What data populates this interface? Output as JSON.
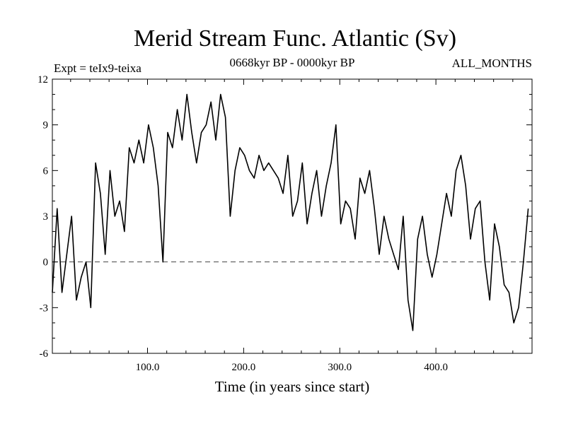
{
  "chart_data": {
    "type": "line",
    "title": "Merid Stream Func. Atlantic (Sv)",
    "experiment_label": "Expt = teIx9-teixa",
    "period_label": "0668kyr BP - 0000kyr BP",
    "season_label": "ALL_MONTHS",
    "xlabel": "Time (in years since start)",
    "ylabel": "",
    "xlim": [
      1,
      500
    ],
    "ylim": [
      -6,
      12
    ],
    "x_ticks": [
      100,
      200,
      300,
      400
    ],
    "x_tick_labels": [
      "100.0",
      "200.0",
      "300.0",
      "400.0"
    ],
    "y_ticks": [
      -6,
      -3,
      0,
      3,
      6,
      9,
      12
    ],
    "y_tick_labels": [
      "-6",
      "-3",
      "0",
      "3",
      "6",
      "9",
      "12"
    ],
    "reference_line": {
      "y": 0,
      "style": "dashed"
    },
    "series": [
      {
        "name": "Merid Stream Func. Atlantic",
        "x_start": 1,
        "x_step": 5,
        "values": [
          -2.0,
          3.5,
          -2.0,
          0.5,
          3.0,
          -2.5,
          -1.0,
          0.0,
          -3.0,
          6.5,
          4.5,
          0.5,
          6.0,
          3.0,
          4.0,
          2.0,
          7.5,
          6.5,
          8.0,
          6.5,
          9.0,
          7.5,
          5.0,
          0.0,
          8.5,
          7.5,
          10.0,
          8.0,
          11.0,
          8.5,
          6.5,
          8.5,
          9.0,
          10.5,
          8.0,
          11.0,
          9.5,
          3.0,
          6.0,
          7.5,
          7.0,
          6.0,
          5.5,
          7.0,
          6.0,
          6.5,
          6.0,
          5.5,
          4.5,
          7.0,
          3.0,
          4.0,
          6.5,
          2.5,
          4.5,
          6.0,
          3.0,
          5.0,
          6.5,
          9.0,
          2.5,
          4.0,
          3.5,
          1.5,
          5.5,
          4.5,
          6.0,
          3.5,
          0.5,
          3.0,
          1.5,
          0.5,
          -0.5,
          3.0,
          -2.5,
          -4.5,
          1.5,
          3.0,
          0.5,
          -1.0,
          0.5,
          2.5,
          4.5,
          3.0,
          6.0,
          7.0,
          5.0,
          1.5,
          3.5,
          4.0,
          0.0,
          -2.5,
          2.5,
          1.0,
          -1.5,
          -2.0,
          -4.0,
          -3.0,
          0.0,
          3.5
        ]
      }
    ]
  }
}
